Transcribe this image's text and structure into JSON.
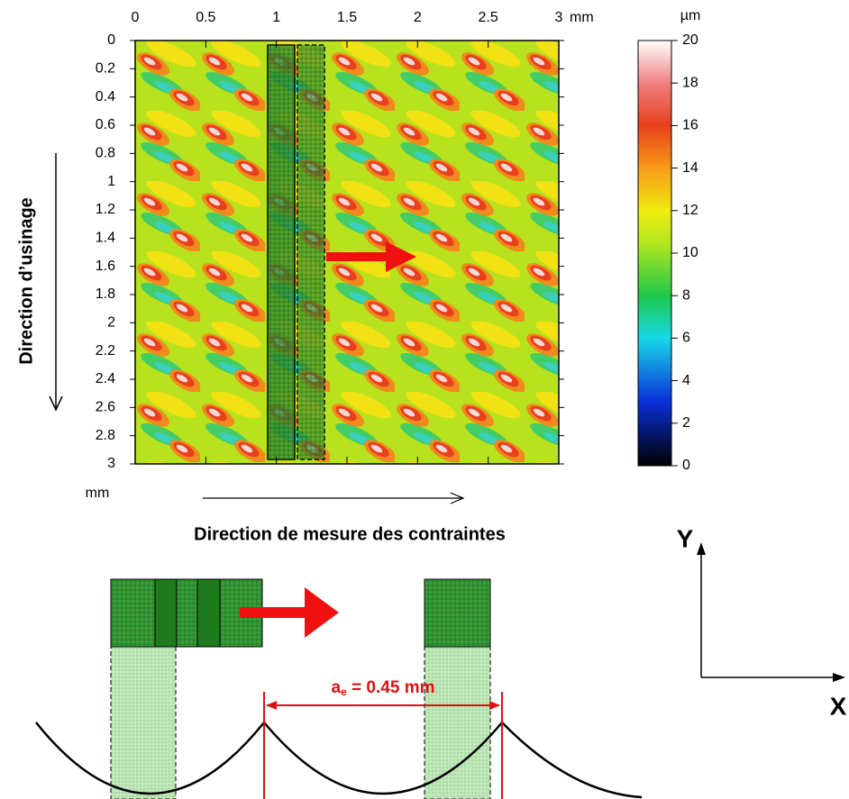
{
  "chart_data": {
    "type": "heatmap",
    "xlim": [
      0,
      3
    ],
    "ylim": [
      0,
      3
    ],
    "xticks": [
      0,
      0.5,
      1,
      1.5,
      2,
      2.5,
      3
    ],
    "yticks": [
      0,
      0.2,
      0.4,
      0.6,
      0.8,
      1,
      1.2,
      1.4,
      1.6,
      1.8,
      2,
      2.2,
      2.4,
      2.6,
      2.8,
      3
    ],
    "x_unit": "mm",
    "y_unit": "mm",
    "y_label": "Direction d’usinage",
    "x_label": "Direction de mesure des contraintes",
    "colorbar": {
      "unit": "µm",
      "lim": [
        0,
        20
      ],
      "ticks": [
        0,
        2,
        4,
        6,
        8,
        10,
        12,
        14,
        16,
        18,
        20
      ],
      "colorscale": [
        [
          0,
          "#000000"
        ],
        [
          3,
          "#0a2fd8"
        ],
        [
          6,
          "#18d8e8"
        ],
        [
          8,
          "#1ec84a"
        ],
        [
          10.5,
          "#b4e81e"
        ],
        [
          12,
          "#f0ec10"
        ],
        [
          14,
          "#f89a18"
        ],
        [
          16,
          "#e8401c"
        ],
        [
          18,
          "#f08080"
        ],
        [
          20,
          "#ffffff"
        ]
      ]
    }
  },
  "diagram": {
    "y_axis": "Y",
    "x_axis": "X",
    "dimension": {
      "symbol": "a",
      "subscript": "e",
      "text": " = 0.45 mm"
    }
  }
}
